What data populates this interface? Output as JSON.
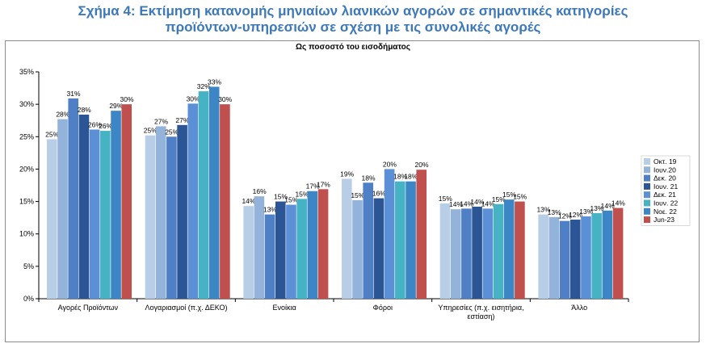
{
  "title_line1": "Σχήμα 4: Εκτίμηση κατανομής μηνιαίων λιανικών αγορών σε σημαντικές κατηγορίες",
  "title_line2": "προϊόντων-υπηρεσιών σε σχέση με τις συνολικές αγορές",
  "chart_data": {
    "type": "bar",
    "title": "Ως ποσοστό του εισοδήματος",
    "xlabel": "",
    "ylabel": "",
    "ylim": [
      0,
      35
    ],
    "yticks": [
      "0%",
      "5%",
      "10%",
      "15%",
      "20%",
      "25%",
      "30%",
      "35%"
    ],
    "grid": false,
    "legend": "right",
    "categories": [
      [
        "Αγορές Προϊόντων"
      ],
      [
        "Λογαριασμοί (π.χ. ΔΕΚΟ)"
      ],
      [
        "Ενοίκια"
      ],
      [
        "Φόροι"
      ],
      [
        "Υπηρεσίες (π.χ. εισητήρια,",
        "εστίαση)"
      ],
      [
        "Άλλο"
      ]
    ],
    "series": [
      {
        "name": "Οκτ. 19",
        "color": "#b8cde6",
        "values": [
          24.6,
          25.2,
          14.3,
          18.5,
          14.7,
          13.0
        ]
      },
      {
        "name": "Ιουν.20",
        "color": "#93b3da",
        "values": [
          27.7,
          26.6,
          15.8,
          15.2,
          13.8,
          12.6
        ]
      },
      {
        "name": "Δεκ. 20",
        "color": "#4f80c6",
        "values": [
          30.9,
          25.0,
          13.0,
          17.9,
          13.9,
          12.0
        ]
      },
      {
        "name": "Ιουν. 21",
        "color": "#2c5596",
        "values": [
          28.4,
          26.8,
          15.0,
          15.5,
          14.2,
          12.2
        ]
      },
      {
        "name": "Δεκ. 21",
        "color": "#5b8fd6",
        "values": [
          26.1,
          30.1,
          14.5,
          20.0,
          13.9,
          12.7
        ]
      },
      {
        "name": "Ιουν. 22",
        "color": "#46b3c4",
        "values": [
          25.9,
          32.0,
          15.4,
          18.1,
          14.6,
          13.2
        ]
      },
      {
        "name": "Νοε. 22",
        "color": "#3d86c6",
        "values": [
          29.0,
          32.7,
          16.6,
          18.1,
          15.3,
          13.6
        ]
      },
      {
        "name": "Jun-23",
        "color": "#c0504d",
        "values": [
          30.0,
          30.0,
          16.9,
          19.9,
          15.0,
          14.0
        ]
      }
    ],
    "data_labels": [
      [
        "25%",
        "28%",
        "31%",
        "28%",
        "26%",
        "26%",
        "29%",
        "30%"
      ],
      [
        "25%",
        "27%",
        "25%",
        "27%",
        "30%",
        "32%",
        "33%",
        "30%"
      ],
      [
        "14%",
        "16%",
        "13%",
        "15%",
        "15%",
        "15%",
        "17%",
        "17%"
      ],
      [
        "19%",
        "15%",
        "18%",
        "16%",
        "20%",
        "18%",
        "18%",
        "20%"
      ],
      [
        "15%",
        "14%",
        "14%",
        "14%",
        "14%",
        "15%",
        "15%",
        "15%"
      ],
      [
        "13%",
        "13%",
        "12%",
        "12%",
        "13%",
        "13%",
        "14%",
        "14%"
      ]
    ]
  }
}
